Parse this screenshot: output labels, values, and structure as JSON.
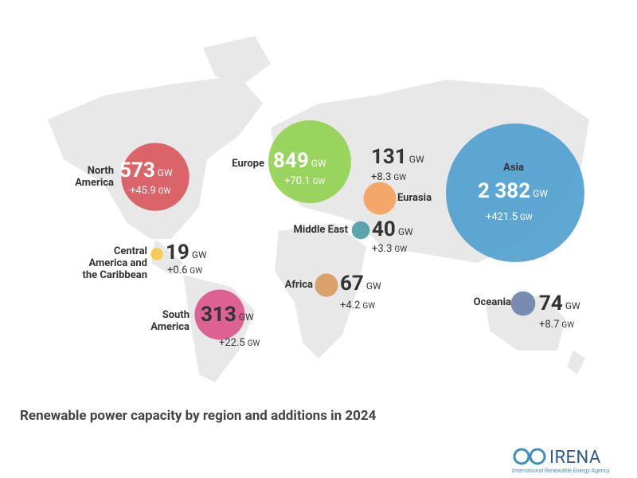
{
  "title": "Renewable power capacity by region and additions in 2024",
  "unit": "GW",
  "logo": "IRENA",
  "logo_subtitle": "International Renewable Energy Agency",
  "regions": [
    {
      "name": "North America",
      "capacity": 573,
      "addition": "+45.9",
      "color": "#d9555b"
    },
    {
      "name": "Europe",
      "capacity": 849,
      "addition": "+70.1",
      "color": "#8fd14f"
    },
    {
      "name": "Eurasia",
      "capacity": 131,
      "addition": "+8.3",
      "color": "#f5a05a"
    },
    {
      "name": "Asia",
      "capacity": {
        "value": 2382,
        "label": "2 382"
      },
      "addition": "+421.5",
      "color": "#4f9fcf"
    },
    {
      "name": "Middle East",
      "capacity": 40,
      "addition": "+3.3",
      "color": "#4a9aa5"
    },
    {
      "name": "Central America and the Caribbean",
      "capacity": 19,
      "addition": "+0.6",
      "color": "#f7c948"
    },
    {
      "name": "Africa",
      "capacity": 67,
      "addition": "+4.2",
      "color": "#d79a5e"
    },
    {
      "name": "South America",
      "capacity": 313,
      "addition": "+22.5",
      "color": "#d9538a"
    },
    {
      "name": "Oceania",
      "capacity": 74,
      "addition": "+8.7",
      "color": "#6a7fa8"
    }
  ]
}
